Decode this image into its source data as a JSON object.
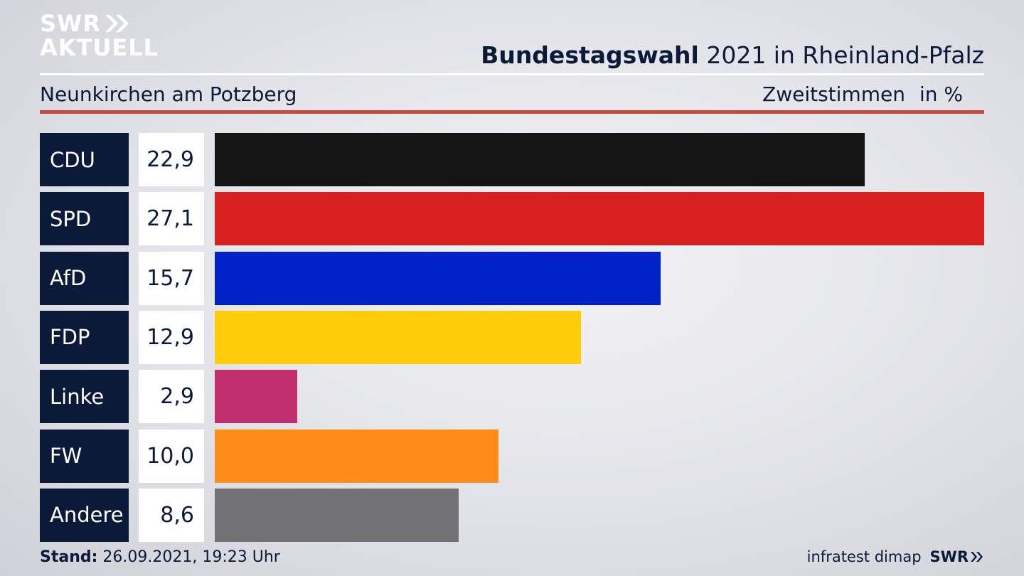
{
  "logo": {
    "line1": "SWR",
    "line2": "AKTUELL"
  },
  "header": {
    "title_bold": "Bundestagswahl",
    "title_rest": "2021 in Rheinland-Pfalz",
    "region": "Neunkirchen am Potzberg",
    "measure": "Zweitstimmen",
    "unit": "in %"
  },
  "chart_data": {
    "type": "bar",
    "orientation": "horizontal",
    "categories": [
      "CDU",
      "SPD",
      "AfD",
      "FDP",
      "Linke",
      "FW",
      "Andere"
    ],
    "values": [
      22.9,
      27.1,
      15.7,
      12.9,
      2.9,
      10.0,
      8.6
    ],
    "value_labels": [
      "22,9",
      "27,1",
      "15,7",
      "12,9",
      "2,9",
      "10,0",
      "8,6"
    ],
    "colors": [
      "#141414",
      "#d8211f",
      "#0022c8",
      "#fdcc0a",
      "#c0306f",
      "#fd8c19",
      "#727274"
    ],
    "xlim": [
      0,
      27.1
    ],
    "grid": false,
    "legend": "none"
  },
  "footer": {
    "stand_label": "Stand:",
    "stand_value": "26.09.2021, 19:23 Uhr",
    "source": "infratest dimap",
    "brand": "SWR"
  }
}
